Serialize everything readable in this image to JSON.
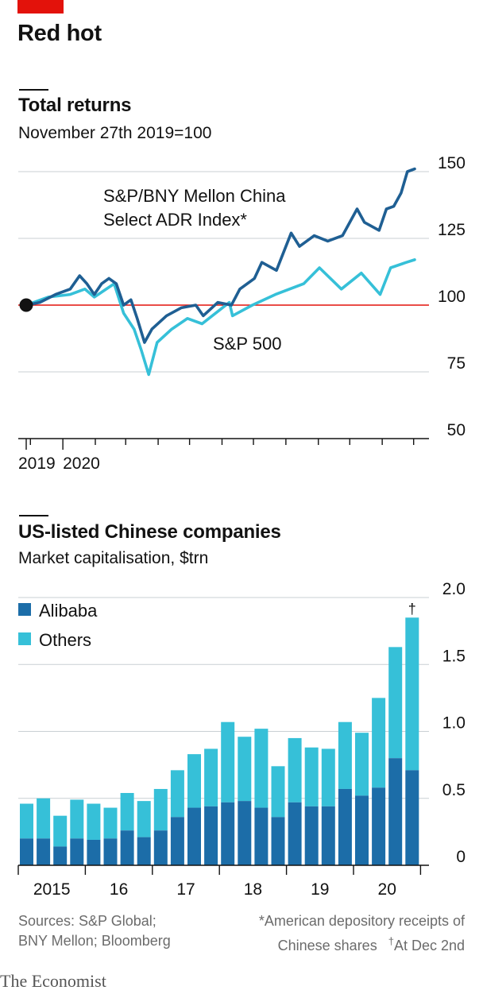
{
  "header": {
    "headline": "Red hot"
  },
  "colors": {
    "red": "#e3120b",
    "dark_blue": "#1f5f93",
    "light_blue": "#36c0d8",
    "alibaba": "#1c6da8",
    "others": "#36c0d8"
  },
  "chart_data": [
    {
      "type": "line",
      "title": "Total returns",
      "subtitle": "November 27th 2019=100",
      "y_ticks": [
        "150",
        "125",
        "100",
        "75",
        "50"
      ],
      "ylim": [
        50,
        150
      ],
      "x_tick_labels": [
        "2019",
        "2020"
      ],
      "baseline": 100,
      "x_domain": [
        "2019-11-27",
        "2020-12-02"
      ],
      "annotations": {
        "china_label_1": "S&P/BNY Mellon China",
        "china_label_2": "Select ADR Index*",
        "sp_label": "S&P 500"
      },
      "series": [
        {
          "name": "S&P/BNY Mellon China Select ADR Index*",
          "color": "#1f5f93",
          "points": [
            [
              "2019-11-27",
              100
            ],
            [
              "2019-12-10",
              101
            ],
            [
              "2019-12-25",
              104
            ],
            [
              "2020-01-08",
              106
            ],
            [
              "2020-01-17",
              111
            ],
            [
              "2020-01-24",
              108
            ],
            [
              "2020-01-31",
              104
            ],
            [
              "2020-02-07",
              108
            ],
            [
              "2020-02-14",
              110
            ],
            [
              "2020-02-21",
              108
            ],
            [
              "2020-02-28",
              100
            ],
            [
              "2020-03-06",
              102
            ],
            [
              "2020-03-12",
              95
            ],
            [
              "2020-03-19",
              86
            ],
            [
              "2020-03-26",
              91
            ],
            [
              "2020-04-09",
              96
            ],
            [
              "2020-04-23",
              99
            ],
            [
              "2020-05-07",
              100
            ],
            [
              "2020-05-14",
              96
            ],
            [
              "2020-05-28",
              101
            ],
            [
              "2020-06-10",
              100
            ],
            [
              "2020-06-18",
              106
            ],
            [
              "2020-07-02",
              110
            ],
            [
              "2020-07-09",
              116
            ],
            [
              "2020-07-23",
              113
            ],
            [
              "2020-08-06",
              127
            ],
            [
              "2020-08-14",
              122
            ],
            [
              "2020-08-28",
              126
            ],
            [
              "2020-09-10",
              124
            ],
            [
              "2020-09-24",
              126
            ],
            [
              "2020-10-08",
              136
            ],
            [
              "2020-10-15",
              131
            ],
            [
              "2020-10-29",
              128
            ],
            [
              "2020-11-05",
              136
            ],
            [
              "2020-11-12",
              137
            ],
            [
              "2020-11-19",
              142
            ],
            [
              "2020-11-25",
              150
            ],
            [
              "2020-12-02",
              151
            ]
          ]
        },
        {
          "name": "S&P 500",
          "color": "#36c0d8",
          "points": [
            [
              "2019-11-27",
              100
            ],
            [
              "2019-12-18",
              103
            ],
            [
              "2020-01-08",
              104
            ],
            [
              "2020-01-22",
              106
            ],
            [
              "2020-01-31",
              103
            ],
            [
              "2020-02-19",
              108
            ],
            [
              "2020-02-28",
              97
            ],
            [
              "2020-03-09",
              91
            ],
            [
              "2020-03-16",
              83
            ],
            [
              "2020-03-23",
              74
            ],
            [
              "2020-03-31",
              86
            ],
            [
              "2020-04-14",
              91
            ],
            [
              "2020-04-29",
              95
            ],
            [
              "2020-05-13",
              93
            ],
            [
              "2020-06-08",
              101
            ],
            [
              "2020-06-11",
              96
            ],
            [
              "2020-06-30",
              100
            ],
            [
              "2020-07-22",
              104
            ],
            [
              "2020-08-18",
              108
            ],
            [
              "2020-09-02",
              114
            ],
            [
              "2020-09-23",
              106
            ],
            [
              "2020-10-12",
              112
            ],
            [
              "2020-10-30",
              104
            ],
            [
              "2020-11-09",
              114
            ],
            [
              "2020-11-24",
              116
            ],
            [
              "2020-12-02",
              117
            ]
          ]
        }
      ]
    },
    {
      "type": "bar",
      "title": "US-listed Chinese companies",
      "subtitle": "Market capitalisation, $trn",
      "stacked": true,
      "y_ticks": [
        "2.0",
        "1.5",
        "1.0",
        "0.5",
        "0"
      ],
      "ylim": [
        0,
        2.0
      ],
      "x_tick_labels": [
        "2015",
        "16",
        "17",
        "18",
        "19",
        "20"
      ],
      "dagger_label": "†",
      "legend": [
        "Alibaba",
        "Others"
      ],
      "categories": [
        "2015 Q1",
        "2015 Q2",
        "2015 Q3",
        "2015 Q4",
        "2016 Q1",
        "2016 Q2",
        "2016 Q3",
        "2016 Q4",
        "2017 Q1",
        "2017 Q2",
        "2017 Q3",
        "2017 Q4",
        "2018 Q1",
        "2018 Q2",
        "2018 Q3",
        "2018 Q4",
        "2019 Q1",
        "2019 Q2",
        "2019 Q3",
        "2019 Q4",
        "2020 Q1",
        "2020 Q2",
        "2020 Q3",
        "2020 Dec 2nd"
      ],
      "series": [
        {
          "name": "Alibaba",
          "values": [
            0.2,
            0.2,
            0.14,
            0.2,
            0.19,
            0.2,
            0.26,
            0.21,
            0.26,
            0.36,
            0.43,
            0.44,
            0.47,
            0.48,
            0.43,
            0.36,
            0.47,
            0.44,
            0.44,
            0.57,
            0.52,
            0.58,
            0.8,
            0.71
          ]
        },
        {
          "name": "Others",
          "values": [
            0.26,
            0.3,
            0.23,
            0.29,
            0.27,
            0.23,
            0.28,
            0.27,
            0.31,
            0.35,
            0.4,
            0.43,
            0.6,
            0.48,
            0.59,
            0.38,
            0.48,
            0.44,
            0.43,
            0.5,
            0.47,
            0.67,
            0.83,
            1.14
          ]
        }
      ]
    }
  ],
  "footer": {
    "sources_1": "Sources: S&P Global;",
    "sources_2": "BNY Mellon; Bloomberg",
    "note_1": "*American depository receipts of",
    "note_2": "Chinese shares",
    "note_3": "At Dec 2nd",
    "dagger": "†"
  },
  "brand": "The Economist"
}
